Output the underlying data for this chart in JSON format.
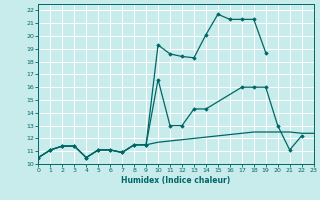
{
  "xlabel": "Humidex (Indice chaleur)",
  "bg_color": "#c8ecec",
  "grid_color": "#b0d8d8",
  "line_color": "#006666",
  "xlim": [
    0,
    23
  ],
  "ylim": [
    10,
    22.5
  ],
  "xticks": [
    0,
    1,
    2,
    3,
    4,
    5,
    6,
    7,
    8,
    9,
    10,
    11,
    12,
    13,
    14,
    15,
    16,
    17,
    18,
    19,
    20,
    21,
    22,
    23
  ],
  "yticks": [
    10,
    11,
    12,
    13,
    14,
    15,
    16,
    17,
    18,
    19,
    20,
    21,
    22
  ],
  "line1_x": [
    0,
    1,
    2,
    3,
    4,
    5,
    6,
    7,
    8,
    9,
    10,
    11,
    12,
    13,
    14,
    15,
    16,
    17,
    18,
    19
  ],
  "line1_y": [
    10.5,
    11.1,
    11.4,
    11.4,
    10.5,
    11.1,
    11.1,
    10.9,
    11.5,
    11.5,
    19.3,
    18.6,
    18.4,
    18.3,
    20.1,
    21.7,
    21.3,
    21.3,
    21.3,
    18.7
  ],
  "line2_x": [
    0,
    1,
    2,
    3,
    4,
    5,
    6,
    7,
    8,
    9,
    10,
    11,
    12,
    13,
    14,
    17,
    18,
    19,
    20,
    21,
    22
  ],
  "line2_y": [
    10.5,
    11.1,
    11.4,
    11.4,
    10.5,
    11.1,
    11.1,
    10.9,
    11.5,
    11.5,
    16.6,
    13.0,
    13.0,
    14.3,
    14.3,
    16.0,
    16.0,
    16.0,
    13.0,
    11.1,
    12.2
  ],
  "line3_x": [
    0,
    1,
    2,
    3,
    4,
    5,
    6,
    7,
    8,
    9,
    10,
    11,
    12,
    13,
    14,
    15,
    16,
    17,
    18,
    19,
    20,
    21,
    22,
    23
  ],
  "line3_y": [
    10.5,
    11.1,
    11.4,
    11.4,
    10.5,
    11.1,
    11.1,
    10.9,
    11.5,
    11.5,
    11.7,
    11.8,
    11.9,
    12.0,
    12.1,
    12.2,
    12.3,
    12.4,
    12.5,
    12.5,
    12.5,
    12.5,
    12.4,
    12.4
  ]
}
